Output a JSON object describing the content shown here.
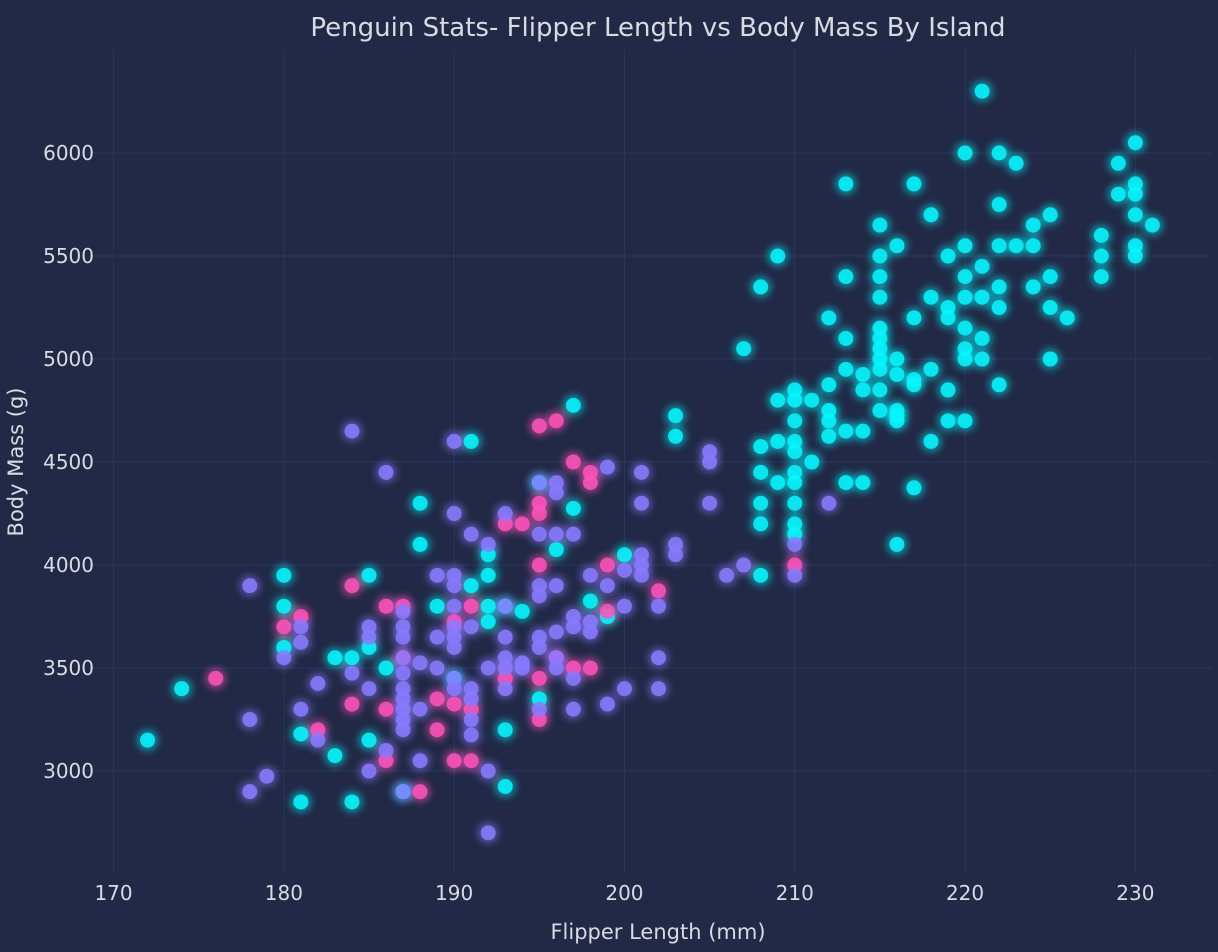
{
  "chart_data": {
    "type": "scatter",
    "title": "Penguin Stats- Flipper Length vs Body Mass By Island",
    "xlabel": "Flipper Length (mm)",
    "ylabel": "Body Mass (g)",
    "xlim": [
      168.5,
      234.5
    ],
    "ylim": [
      2510,
      6500
    ],
    "xticks": [
      170,
      180,
      190,
      200,
      210,
      220,
      230
    ],
    "yticks": [
      3000,
      3500,
      4000,
      4500,
      5000,
      5500,
      6000
    ],
    "grid": true,
    "legend": "none",
    "series": [
      {
        "color": "#08f7fe",
        "points": [
          [
            172,
            3150
          ],
          [
            174,
            3400
          ],
          [
            180,
            3950
          ],
          [
            180,
            3800
          ],
          [
            180,
            3600
          ],
          [
            181,
            3180
          ],
          [
            181,
            2850
          ],
          [
            183,
            3550
          ],
          [
            183,
            3075
          ],
          [
            184,
            3550
          ],
          [
            184,
            2850
          ],
          [
            185,
            3950
          ],
          [
            185,
            3150
          ],
          [
            185,
            3600
          ],
          [
            186,
            3500
          ],
          [
            187,
            2900
          ],
          [
            188,
            4300
          ],
          [
            188,
            4100
          ],
          [
            189,
            3800
          ],
          [
            190,
            3450
          ],
          [
            191,
            4600
          ],
          [
            191,
            3900
          ],
          [
            192,
            3800
          ],
          [
            192,
            4050
          ],
          [
            192,
            3950
          ],
          [
            192,
            3725
          ],
          [
            193,
            2925
          ],
          [
            193,
            3800
          ],
          [
            193,
            3200
          ],
          [
            194,
            3775
          ],
          [
            195,
            4400
          ],
          [
            195,
            3350
          ],
          [
            196,
            4075
          ],
          [
            197,
            4775
          ],
          [
            197,
            4275
          ],
          [
            198,
            3825
          ],
          [
            199,
            3750
          ],
          [
            200,
            4050
          ],
          [
            203,
            4725
          ],
          [
            203,
            4625
          ],
          [
            207,
            5050
          ],
          [
            208,
            4575
          ],
          [
            208,
            4450
          ],
          [
            208,
            4300
          ],
          [
            208,
            4200
          ],
          [
            208,
            3950
          ],
          [
            208,
            5350
          ],
          [
            209,
            5500
          ],
          [
            209,
            4800
          ],
          [
            209,
            4600
          ],
          [
            209,
            4400
          ],
          [
            210,
            4850
          ],
          [
            210,
            4700
          ],
          [
            210,
            4600
          ],
          [
            210,
            4550
          ],
          [
            210,
            4450
          ],
          [
            210,
            4400
          ],
          [
            210,
            4300
          ],
          [
            210,
            4200
          ],
          [
            210,
            4150
          ],
          [
            210,
            4800
          ],
          [
            211,
            4800
          ],
          [
            211,
            4500
          ],
          [
            212,
            5200
          ],
          [
            212,
            4875
          ],
          [
            212,
            4750
          ],
          [
            212,
            4700
          ],
          [
            212,
            4625
          ],
          [
            213,
            5850
          ],
          [
            213,
            5400
          ],
          [
            213,
            5100
          ],
          [
            213,
            4950
          ],
          [
            213,
            4650
          ],
          [
            213,
            4400
          ],
          [
            214,
            4925
          ],
          [
            214,
            4850
          ],
          [
            214,
            4650
          ],
          [
            214,
            4400
          ],
          [
            215,
            5650
          ],
          [
            215,
            5500
          ],
          [
            215,
            5400
          ],
          [
            215,
            5300
          ],
          [
            215,
            5150
          ],
          [
            215,
            5100
          ],
          [
            215,
            5050
          ],
          [
            215,
            5000
          ],
          [
            215,
            4950
          ],
          [
            215,
            4850
          ],
          [
            215,
            4750
          ],
          [
            216,
            5550
          ],
          [
            216,
            5000
          ],
          [
            216,
            4925
          ],
          [
            216,
            4750
          ],
          [
            216,
            4725
          ],
          [
            216,
            4700
          ],
          [
            216,
            4100
          ],
          [
            217,
            5850
          ],
          [
            217,
            5200
          ],
          [
            217,
            4900
          ],
          [
            217,
            4875
          ],
          [
            217,
            4375
          ],
          [
            218,
            5700
          ],
          [
            218,
            5300
          ],
          [
            218,
            4950
          ],
          [
            218,
            4600
          ],
          [
            219,
            5500
          ],
          [
            219,
            5250
          ],
          [
            219,
            5200
          ],
          [
            219,
            4850
          ],
          [
            219,
            4700
          ],
          [
            220,
            6000
          ],
          [
            220,
            5550
          ],
          [
            220,
            5400
          ],
          [
            220,
            5300
          ],
          [
            220,
            5150
          ],
          [
            220,
            5050
          ],
          [
            220,
            5000
          ],
          [
            220,
            4700
          ],
          [
            221,
            6300
          ],
          [
            221,
            5450
          ],
          [
            221,
            5300
          ],
          [
            221,
            5100
          ],
          [
            221,
            5000
          ],
          [
            222,
            6000
          ],
          [
            222,
            5750
          ],
          [
            222,
            5550
          ],
          [
            222,
            5350
          ],
          [
            222,
            5250
          ],
          [
            222,
            4875
          ],
          [
            223,
            5950
          ],
          [
            223,
            5550
          ],
          [
            224,
            5650
          ],
          [
            224,
            5550
          ],
          [
            224,
            5350
          ],
          [
            225,
            5700
          ],
          [
            225,
            5400
          ],
          [
            225,
            5250
          ],
          [
            225,
            5000
          ],
          [
            226,
            5200
          ],
          [
            228,
            5600
          ],
          [
            228,
            5500
          ],
          [
            228,
            5400
          ],
          [
            229,
            5950
          ],
          [
            229,
            5800
          ],
          [
            230,
            6050
          ],
          [
            230,
            5850
          ],
          [
            230,
            5800
          ],
          [
            230,
            5700
          ],
          [
            230,
            5550
          ],
          [
            230,
            5500
          ],
          [
            231,
            5650
          ]
        ]
      },
      {
        "color": "#fe53bb",
        "points": [
          [
            176,
            3450
          ],
          [
            180,
            3700
          ],
          [
            181,
            3750
          ],
          [
            182,
            3200
          ],
          [
            184,
            3900
          ],
          [
            184,
            3325
          ],
          [
            186,
            3800
          ],
          [
            186,
            3300
          ],
          [
            186,
            3050
          ],
          [
            187,
            3800
          ],
          [
            187,
            3550
          ],
          [
            188,
            2900
          ],
          [
            189,
            3350
          ],
          [
            189,
            3200
          ],
          [
            190,
            3725
          ],
          [
            190,
            3325
          ],
          [
            190,
            3050
          ],
          [
            191,
            3800
          ],
          [
            191,
            3300
          ],
          [
            191,
            3050
          ],
          [
            193,
            4200
          ],
          [
            193,
            3450
          ],
          [
            194,
            4200
          ],
          [
            195,
            4675
          ],
          [
            195,
            4300
          ],
          [
            195,
            4250
          ],
          [
            195,
            4000
          ],
          [
            195,
            3450
          ],
          [
            195,
            3250
          ],
          [
            196,
            4700
          ],
          [
            196,
            3550
          ],
          [
            197,
            4500
          ],
          [
            197,
            3500
          ],
          [
            198,
            4450
          ],
          [
            198,
            4400
          ],
          [
            198,
            3500
          ],
          [
            199,
            4000
          ],
          [
            199,
            3775
          ],
          [
            202,
            3875
          ],
          [
            210,
            4000
          ]
        ]
      },
      {
        "color": "#8a7bff",
        "points": [
          [
            178,
            3900
          ],
          [
            178,
            3250
          ],
          [
            178,
            2900
          ],
          [
            179,
            2975
          ],
          [
            180,
            3550
          ],
          [
            181,
            3700
          ],
          [
            181,
            3625
          ],
          [
            181,
            3300
          ],
          [
            182,
            3425
          ],
          [
            182,
            3150
          ],
          [
            184,
            4650
          ],
          [
            184,
            3475
          ],
          [
            185,
            3700
          ],
          [
            185,
            3650
          ],
          [
            185,
            3400
          ],
          [
            185,
            3000
          ],
          [
            186,
            4450
          ],
          [
            186,
            3100
          ],
          [
            187,
            3775
          ],
          [
            187,
            3700
          ],
          [
            187,
            3650
          ],
          [
            187,
            3550
          ],
          [
            187,
            3475
          ],
          [
            187,
            3400
          ],
          [
            187,
            3350
          ],
          [
            187,
            3300
          ],
          [
            187,
            3250
          ],
          [
            187,
            3200
          ],
          [
            187,
            2900
          ],
          [
            188,
            3525
          ],
          [
            188,
            3300
          ],
          [
            188,
            3050
          ],
          [
            189,
            3950
          ],
          [
            189,
            3650
          ],
          [
            189,
            3500
          ],
          [
            190,
            4600
          ],
          [
            190,
            4250
          ],
          [
            190,
            3950
          ],
          [
            190,
            3900
          ],
          [
            190,
            3800
          ],
          [
            190,
            3700
          ],
          [
            190,
            3650
          ],
          [
            190,
            3600
          ],
          [
            190,
            3450
          ],
          [
            190,
            3400
          ],
          [
            191,
            4150
          ],
          [
            191,
            3700
          ],
          [
            191,
            3400
          ],
          [
            191,
            3350
          ],
          [
            191,
            3250
          ],
          [
            191,
            3175
          ],
          [
            192,
            4100
          ],
          [
            192,
            3500
          ],
          [
            192,
            3000
          ],
          [
            192,
            2700
          ],
          [
            193,
            4250
          ],
          [
            193,
            3800
          ],
          [
            193,
            3650
          ],
          [
            193,
            3550
          ],
          [
            193,
            3500
          ],
          [
            193,
            3400
          ],
          [
            194,
            3525
          ],
          [
            194,
            3500
          ],
          [
            195,
            4400
          ],
          [
            195,
            4150
          ],
          [
            195,
            3900
          ],
          [
            195,
            3850
          ],
          [
            195,
            3650
          ],
          [
            195,
            3600
          ],
          [
            195,
            3300
          ],
          [
            196,
            4400
          ],
          [
            196,
            4350
          ],
          [
            196,
            4150
          ],
          [
            196,
            3900
          ],
          [
            196,
            3675
          ],
          [
            196,
            3550
          ],
          [
            196,
            3500
          ],
          [
            197,
            4150
          ],
          [
            197,
            3750
          ],
          [
            197,
            3700
          ],
          [
            197,
            3450
          ],
          [
            197,
            3300
          ],
          [
            198,
            3950
          ],
          [
            198,
            3725
          ],
          [
            198,
            3675
          ],
          [
            199,
            4475
          ],
          [
            199,
            3900
          ],
          [
            199,
            3325
          ],
          [
            200,
            3975
          ],
          [
            200,
            3800
          ],
          [
            200,
            3400
          ],
          [
            201,
            4450
          ],
          [
            201,
            4300
          ],
          [
            201,
            4050
          ],
          [
            201,
            4000
          ],
          [
            201,
            3950
          ],
          [
            202,
            3800
          ],
          [
            202,
            3550
          ],
          [
            202,
            3400
          ],
          [
            203,
            4100
          ],
          [
            203,
            4050
          ],
          [
            205,
            4550
          ],
          [
            205,
            4500
          ],
          [
            205,
            4300
          ],
          [
            206,
            3950
          ],
          [
            207,
            4000
          ],
          [
            210,
            4100
          ],
          [
            210,
            3950
          ],
          [
            212,
            4300
          ]
        ]
      }
    ]
  }
}
